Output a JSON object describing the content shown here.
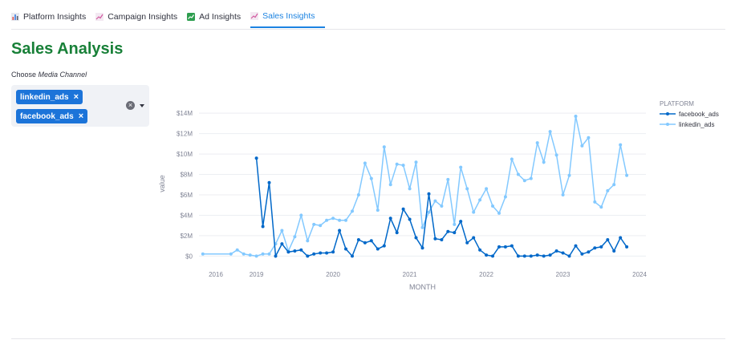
{
  "tabs": [
    {
      "label": "Platform Insights",
      "icon": "bar-chart-icon",
      "active": false
    },
    {
      "label": "Campaign Insights",
      "icon": "trend-chart-icon",
      "active": false
    },
    {
      "label": "Ad Insights",
      "icon": "chart-up-icon",
      "active": false
    },
    {
      "label": "Sales Insights",
      "icon": "trend-chart-icon",
      "active": true
    }
  ],
  "page": {
    "title": "Sales Analysis"
  },
  "filter": {
    "label_prefix": "Choose ",
    "label_emph": "Media Channel",
    "selected": [
      {
        "label": "linkedin_ads",
        "remove": "×"
      },
      {
        "label": "facebook_ads",
        "remove": "×"
      }
    ],
    "clear": "×"
  },
  "colors": {
    "title_green": "#188038",
    "chip_blue": "#1c74d9",
    "active_tab": "#1c83e1",
    "facebook_ads": "#0068c9",
    "linkedin_ads": "#83c9ff"
  },
  "chart_data": {
    "type": "line",
    "xlabel": "MONTH",
    "ylabel": "value",
    "legend_title": "PLATFORM",
    "legend_position": "top-right",
    "grid": true,
    "x_ticks": [
      "2016",
      "2019",
      "2020",
      "2021",
      "2022",
      "2023",
      "2024"
    ],
    "y_ticks": [
      "$0",
      "$2M",
      "$4M",
      "$6M",
      "$8M",
      "$10M",
      "$12M",
      "$14M"
    ],
    "xlim": [
      "2018-04",
      "2024-02"
    ],
    "ylim": [
      -0.6,
      14.8
    ],
    "y_unit": "$M",
    "series": [
      {
        "name": "facebook_ads",
        "points": [
          [
            "2019-01",
            9.6
          ],
          [
            "2019-02",
            2.9
          ],
          [
            "2019-03",
            7.2
          ],
          [
            "2019-04",
            0.0
          ],
          [
            "2019-05",
            1.2
          ],
          [
            "2019-06",
            0.4
          ],
          [
            "2019-07",
            0.5
          ],
          [
            "2019-08",
            0.6
          ],
          [
            "2019-09",
            0.0
          ],
          [
            "2019-10",
            0.2
          ],
          [
            "2019-11",
            0.3
          ],
          [
            "2019-12",
            0.3
          ],
          [
            "2020-01",
            0.4
          ],
          [
            "2020-02",
            2.5
          ],
          [
            "2020-03",
            0.7
          ],
          [
            "2020-04",
            0.0
          ],
          [
            "2020-05",
            1.6
          ],
          [
            "2020-06",
            1.3
          ],
          [
            "2020-07",
            1.5
          ],
          [
            "2020-08",
            0.7
          ],
          [
            "2020-09",
            1.0
          ],
          [
            "2020-10",
            3.7
          ],
          [
            "2020-11",
            2.3
          ],
          [
            "2020-12",
            4.6
          ],
          [
            "2021-01",
            3.6
          ],
          [
            "2021-02",
            1.8
          ],
          [
            "2021-03",
            0.8
          ],
          [
            "2021-04",
            6.1
          ],
          [
            "2021-05",
            1.7
          ],
          [
            "2021-06",
            1.6
          ],
          [
            "2021-07",
            2.4
          ],
          [
            "2021-08",
            2.3
          ],
          [
            "2021-09",
            3.4
          ],
          [
            "2021-10",
            1.3
          ],
          [
            "2021-11",
            1.8
          ],
          [
            "2021-12",
            0.6
          ],
          [
            "2022-01",
            0.1
          ],
          [
            "2022-02",
            0.0
          ],
          [
            "2022-03",
            0.9
          ],
          [
            "2022-04",
            0.9
          ],
          [
            "2022-05",
            1.0
          ],
          [
            "2022-06",
            0.0
          ],
          [
            "2022-07",
            0.0
          ],
          [
            "2022-08",
            0.0
          ],
          [
            "2022-09",
            0.1
          ],
          [
            "2022-10",
            0.0
          ],
          [
            "2022-11",
            0.1
          ],
          [
            "2022-12",
            0.5
          ],
          [
            "2023-01",
            0.3
          ],
          [
            "2023-02",
            0.0
          ],
          [
            "2023-03",
            1.0
          ],
          [
            "2023-04",
            0.2
          ],
          [
            "2023-05",
            0.4
          ],
          [
            "2023-06",
            0.8
          ],
          [
            "2023-07",
            0.9
          ],
          [
            "2023-08",
            1.6
          ],
          [
            "2023-09",
            0.5
          ],
          [
            "2023-10",
            1.8
          ],
          [
            "2023-11",
            0.9
          ]
        ]
      },
      {
        "name": "linkedin_ads",
        "points": [
          [
            "2018-01",
            0.2
          ],
          [
            "2018-09",
            0.2
          ],
          [
            "2018-10",
            0.6
          ],
          [
            "2018-11",
            0.2
          ],
          [
            "2018-12",
            0.1
          ],
          [
            "2019-01",
            0.0
          ],
          [
            "2019-02",
            0.2
          ],
          [
            "2019-03",
            0.2
          ],
          [
            "2019-04",
            1.2
          ],
          [
            "2019-05",
            2.5
          ],
          [
            "2019-06",
            0.5
          ],
          [
            "2019-07",
            1.9
          ],
          [
            "2019-08",
            4.0
          ],
          [
            "2019-09",
            1.5
          ],
          [
            "2019-10",
            3.1
          ],
          [
            "2019-11",
            3.0
          ],
          [
            "2019-12",
            3.5
          ],
          [
            "2020-01",
            3.7
          ],
          [
            "2020-02",
            3.5
          ],
          [
            "2020-03",
            3.5
          ],
          [
            "2020-04",
            4.4
          ],
          [
            "2020-05",
            6.0
          ],
          [
            "2020-06",
            9.1
          ],
          [
            "2020-07",
            7.6
          ],
          [
            "2020-08",
            4.5
          ],
          [
            "2020-09",
            10.7
          ],
          [
            "2020-10",
            7.0
          ],
          [
            "2020-11",
            9.0
          ],
          [
            "2020-12",
            8.9
          ],
          [
            "2021-01",
            6.6
          ],
          [
            "2021-02",
            9.2
          ],
          [
            "2021-03",
            2.8
          ],
          [
            "2021-04",
            4.3
          ],
          [
            "2021-05",
            5.4
          ],
          [
            "2021-06",
            4.9
          ],
          [
            "2021-07",
            7.5
          ],
          [
            "2021-08",
            3.1
          ],
          [
            "2021-09",
            8.7
          ],
          [
            "2021-10",
            6.6
          ],
          [
            "2021-11",
            4.3
          ],
          [
            "2021-12",
            5.5
          ],
          [
            "2022-01",
            6.6
          ],
          [
            "2022-02",
            4.9
          ],
          [
            "2022-03",
            4.2
          ],
          [
            "2022-04",
            5.8
          ],
          [
            "2022-05",
            9.5
          ],
          [
            "2022-06",
            8.0
          ],
          [
            "2022-07",
            7.4
          ],
          [
            "2022-08",
            7.6
          ],
          [
            "2022-09",
            11.1
          ],
          [
            "2022-10",
            9.2
          ],
          [
            "2022-11",
            12.2
          ],
          [
            "2022-12",
            9.9
          ],
          [
            "2023-01",
            6.0
          ],
          [
            "2023-02",
            7.9
          ],
          [
            "2023-03",
            13.7
          ],
          [
            "2023-04",
            10.8
          ],
          [
            "2023-05",
            11.6
          ],
          [
            "2023-06",
            5.3
          ],
          [
            "2023-07",
            4.8
          ],
          [
            "2023-08",
            6.4
          ],
          [
            "2023-09",
            7.0
          ],
          [
            "2023-10",
            10.9
          ],
          [
            "2023-11",
            7.9
          ]
        ]
      }
    ]
  }
}
